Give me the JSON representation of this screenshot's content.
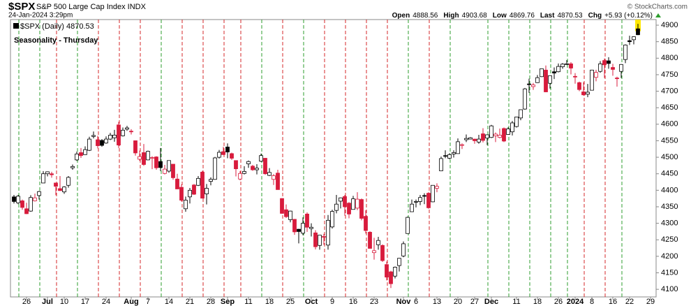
{
  "header": {
    "symbol": "$SPX",
    "name": "S&P 500 Large Cap Index INDX",
    "date": "24-Jan-2024 3:29pm",
    "copyright": "© StockCharts.com",
    "quote": [
      {
        "label": "Open",
        "value": 4888.56
      },
      {
        "label": "High",
        "value": 4903.68
      },
      {
        "label": "Low",
        "value": 4869.76
      },
      {
        "label": "Last",
        "value": 4870.53
      },
      {
        "label": "Chg",
        "value": "+5.93 (+0.12%)"
      }
    ]
  },
  "chart_data": {
    "type": "candlestick",
    "title": "Seasonality - Thursday",
    "legend": "$SPX (Daily) 4870.53",
    "up_color": "#000000",
    "down_color": "#d81b3c",
    "marker_weekday": 4,
    "marker_up_color": "#2e9e2e",
    "marker_down_color": "#d62728",
    "title_color": "#1a1ad4",
    "ylim": [
      4077,
      4917
    ],
    "yticks": [
      4100,
      4150,
      4200,
      4250,
      4300,
      4350,
      4400,
      4450,
      4500,
      4550,
      4600,
      4650,
      4700,
      4750,
      4800,
      4850,
      4900
    ],
    "xticks": [
      {
        "value": "2023-06-26",
        "label": "26"
      },
      {
        "value": "2023-07-03",
        "label": "Jul"
      },
      {
        "value": "2023-07-10",
        "label": "10"
      },
      {
        "value": "2023-07-17",
        "label": "17"
      },
      {
        "value": "2023-07-24",
        "label": "24"
      },
      {
        "value": "2023-08-01",
        "label": "Aug"
      },
      {
        "value": "2023-08-07",
        "label": "7"
      },
      {
        "value": "2023-08-14",
        "label": "14"
      },
      {
        "value": "2023-08-21",
        "label": "21"
      },
      {
        "value": "2023-08-28",
        "label": "28"
      },
      {
        "value": "2023-09-01",
        "label": "Sep"
      },
      {
        "value": "2023-09-11",
        "label": "11"
      },
      {
        "value": "2023-09-18",
        "label": "18"
      },
      {
        "value": "2023-09-25",
        "label": "25"
      },
      {
        "value": "2023-10-02",
        "label": "Oct"
      },
      {
        "value": "2023-10-09",
        "label": "9"
      },
      {
        "value": "2023-10-16",
        "label": "16"
      },
      {
        "value": "2023-10-23",
        "label": "23"
      },
      {
        "value": "2023-11-01",
        "label": "Nov"
      },
      {
        "value": "2023-11-06",
        "label": "6"
      },
      {
        "value": "2023-11-13",
        "label": "13"
      },
      {
        "value": "2023-11-20",
        "label": "20"
      },
      {
        "value": "2023-11-27",
        "label": "27"
      },
      {
        "value": "2023-12-01",
        "label": "Dec"
      },
      {
        "value": "2023-12-11",
        "label": "11"
      },
      {
        "value": "2023-12-18",
        "label": "18"
      },
      {
        "value": "2023-12-26",
        "label": "26"
      },
      {
        "value": "2024-01-02",
        "label": "2024"
      },
      {
        "value": "2024-01-08",
        "label": "8"
      },
      {
        "value": "2024-01-16",
        "label": "16"
      },
      {
        "value": "2024-01-22",
        "label": "22"
      },
      {
        "value": "2024-01-29",
        "label": "29"
      }
    ],
    "x": [
      "2023-06-21",
      "2023-06-22",
      "2023-06-23",
      "2023-06-26",
      "2023-06-27",
      "2023-06-28",
      "2023-06-29",
      "2023-06-30",
      "2023-07-03",
      "2023-07-05",
      "2023-07-06",
      "2023-07-07",
      "2023-07-10",
      "2023-07-11",
      "2023-07-12",
      "2023-07-13",
      "2023-07-14",
      "2023-07-17",
      "2023-07-18",
      "2023-07-19",
      "2023-07-20",
      "2023-07-21",
      "2023-07-24",
      "2023-07-25",
      "2023-07-26",
      "2023-07-27",
      "2023-07-28",
      "2023-07-31",
      "2023-08-01",
      "2023-08-02",
      "2023-08-03",
      "2023-08-04",
      "2023-08-07",
      "2023-08-08",
      "2023-08-09",
      "2023-08-10",
      "2023-08-11",
      "2023-08-14",
      "2023-08-15",
      "2023-08-16",
      "2023-08-17",
      "2023-08-18",
      "2023-08-21",
      "2023-08-22",
      "2023-08-23",
      "2023-08-24",
      "2023-08-25",
      "2023-08-28",
      "2023-08-29",
      "2023-08-30",
      "2023-08-31",
      "2023-09-01",
      "2023-09-05",
      "2023-09-06",
      "2023-09-07",
      "2023-09-08",
      "2023-09-11",
      "2023-09-12",
      "2023-09-13",
      "2023-09-14",
      "2023-09-15",
      "2023-09-18",
      "2023-09-19",
      "2023-09-20",
      "2023-09-21",
      "2023-09-22",
      "2023-09-25",
      "2023-09-26",
      "2023-09-27",
      "2023-09-28",
      "2023-09-29",
      "2023-10-02",
      "2023-10-03",
      "2023-10-04",
      "2023-10-05",
      "2023-10-06",
      "2023-10-09",
      "2023-10-10",
      "2023-10-11",
      "2023-10-12",
      "2023-10-13",
      "2023-10-16",
      "2023-10-17",
      "2023-10-18",
      "2023-10-19",
      "2023-10-20",
      "2023-10-23",
      "2023-10-24",
      "2023-10-25",
      "2023-10-26",
      "2023-10-27",
      "2023-10-30",
      "2023-10-31",
      "2023-11-01",
      "2023-11-02",
      "2023-11-03",
      "2023-11-06",
      "2023-11-07",
      "2023-11-08",
      "2023-11-09",
      "2023-11-10",
      "2023-11-13",
      "2023-11-14",
      "2023-11-15",
      "2023-11-16",
      "2023-11-17",
      "2023-11-20",
      "2023-11-21",
      "2023-11-22",
      "2023-11-24",
      "2023-11-27",
      "2023-11-28",
      "2023-11-29",
      "2023-11-30",
      "2023-12-01",
      "2023-12-04",
      "2023-12-05",
      "2023-12-06",
      "2023-12-07",
      "2023-12-08",
      "2023-12-11",
      "2023-12-12",
      "2023-12-13",
      "2023-12-14",
      "2023-12-15",
      "2023-12-18",
      "2023-12-19",
      "2023-12-20",
      "2023-12-21",
      "2023-12-22",
      "2023-12-26",
      "2023-12-27",
      "2023-12-28",
      "2023-12-29",
      "2024-01-02",
      "2024-01-03",
      "2024-01-04",
      "2024-01-05",
      "2024-01-08",
      "2024-01-09",
      "2024-01-10",
      "2024-01-11",
      "2024-01-12",
      "2024-01-16",
      "2024-01-17",
      "2024-01-18",
      "2024-01-19",
      "2024-01-22",
      "2024-01-23",
      "2024-01-24"
    ],
    "ohlc": [
      [
        4380,
        4386,
        4360,
        4366
      ],
      [
        4362,
        4386,
        4358,
        4382
      ],
      [
        4368,
        4372,
        4341,
        4348
      ],
      [
        4344,
        4362,
        4328,
        4329
      ],
      [
        4337,
        4385,
        4335,
        4378
      ],
      [
        4368,
        4390,
        4366,
        4377
      ],
      [
        4384,
        4398,
        4372,
        4396
      ],
      [
        4422,
        4458,
        4422,
        4450
      ],
      [
        4450,
        4457,
        4442,
        4456
      ],
      [
        4450,
        4456,
        4438,
        4447
      ],
      [
        4422,
        4423,
        4385,
        4412
      ],
      [
        4405,
        4443,
        4398,
        4399
      ],
      [
        4395,
        4412,
        4389,
        4410
      ],
      [
        4415,
        4443,
        4408,
        4439
      ],
      [
        4468,
        4478,
        4462,
        4472
      ],
      [
        4492,
        4517,
        4489,
        4510
      ],
      [
        4514,
        4528,
        4498,
        4505
      ],
      [
        4508,
        4533,
        4507,
        4523
      ],
      [
        4521,
        4562,
        4519,
        4555
      ],
      [
        4563,
        4578,
        4557,
        4566
      ],
      [
        4553,
        4565,
        4527,
        4535
      ],
      [
        4551,
        4555,
        4532,
        4536
      ],
      [
        4543,
        4563,
        4541,
        4555
      ],
      [
        4555,
        4574,
        4552,
        4567
      ],
      [
        4559,
        4583,
        4547,
        4567
      ],
      [
        4598,
        4607,
        4528,
        4537
      ],
      [
        4565,
        4590,
        4563,
        4582
      ],
      [
        4585,
        4595,
        4580,
        4589
      ],
      [
        4579,
        4585,
        4569,
        4577
      ],
      [
        4550,
        4551,
        4505,
        4513
      ],
      [
        4494,
        4520,
        4489,
        4502
      ],
      [
        4514,
        4540,
        4474,
        4478
      ],
      [
        4492,
        4520,
        4491,
        4518
      ],
      [
        4498,
        4503,
        4464,
        4499
      ],
      [
        4501,
        4503,
        4462,
        4468
      ],
      [
        4487,
        4528,
        4458,
        4469
      ],
      [
        4451,
        4477,
        4448,
        4464
      ],
      [
        4458,
        4490,
        4453,
        4490
      ],
      [
        4479,
        4479,
        4432,
        4438
      ],
      [
        4434,
        4450,
        4404,
        4404
      ],
      [
        4409,
        4418,
        4366,
        4370
      ],
      [
        4344,
        4381,
        4335,
        4370
      ],
      [
        4380,
        4407,
        4360,
        4400
      ],
      [
        4416,
        4419,
        4386,
        4388
      ],
      [
        4415,
        4443,
        4413,
        4436
      ],
      [
        4455,
        4459,
        4376,
        4376
      ],
      [
        4389,
        4419,
        4357,
        4406
      ],
      [
        4427,
        4439,
        4415,
        4433
      ],
      [
        4433,
        4501,
        4432,
        4498
      ],
      [
        4500,
        4522,
        4496,
        4515
      ],
      [
        4517,
        4532,
        4507,
        4508
      ],
      [
        4531,
        4542,
        4497,
        4516
      ],
      [
        4511,
        4514,
        4492,
        4497
      ],
      [
        4490,
        4490,
        4442,
        4465
      ],
      [
        4434,
        4458,
        4430,
        4451
      ],
      [
        4451,
        4473,
        4448,
        4457
      ],
      [
        4480,
        4490,
        4468,
        4487
      ],
      [
        4473,
        4477,
        4459,
        4462
      ],
      [
        4462,
        4479,
        4448,
        4467
      ],
      [
        4488,
        4511,
        4486,
        4505
      ],
      [
        4497,
        4498,
        4447,
        4450
      ],
      [
        4445,
        4467,
        4443,
        4454
      ],
      [
        4433,
        4449,
        4416,
        4444
      ],
      [
        4452,
        4462,
        4402,
        4402
      ],
      [
        4375,
        4376,
        4329,
        4330
      ],
      [
        4341,
        4357,
        4316,
        4320
      ],
      [
        4311,
        4338,
        4303,
        4337
      ],
      [
        4312,
        4313,
        4265,
        4274
      ],
      [
        4282,
        4283,
        4239,
        4275
      ],
      [
        4270,
        4318,
        4264,
        4300
      ],
      [
        4328,
        4333,
        4274,
        4288
      ],
      [
        4284,
        4300,
        4260,
        4288
      ],
      [
        4271,
        4279,
        4221,
        4229
      ],
      [
        4233,
        4264,
        4220,
        4264
      ],
      [
        4260,
        4268,
        4235,
        4258
      ],
      [
        4234,
        4325,
        4220,
        4309
      ],
      [
        4289,
        4341,
        4284,
        4336
      ],
      [
        4339,
        4386,
        4330,
        4358
      ],
      [
        4367,
        4378,
        4345,
        4377
      ],
      [
        4381,
        4386,
        4323,
        4350
      ],
      [
        4361,
        4364,
        4315,
        4328
      ],
      [
        4342,
        4383,
        4342,
        4374
      ],
      [
        4346,
        4394,
        4340,
        4373
      ],
      [
        4372,
        4375,
        4309,
        4315
      ],
      [
        4321,
        4339,
        4269,
        4278
      ],
      [
        4273,
        4276,
        4223,
        4224
      ],
      [
        4211,
        4256,
        4190,
        4217
      ],
      [
        4235,
        4259,
        4220,
        4248
      ],
      [
        4233,
        4236,
        4183,
        4187
      ],
      [
        4175,
        4184,
        4127,
        4137
      ],
      [
        4153,
        4156,
        4104,
        4117
      ],
      [
        4140,
        4169,
        4133,
        4167
      ],
      [
        4172,
        4195,
        4154,
        4194
      ],
      [
        4201,
        4245,
        4197,
        4238
      ],
      [
        4269,
        4320,
        4269,
        4318
      ],
      [
        4335,
        4372,
        4335,
        4358
      ],
      [
        4364,
        4372,
        4348,
        4366
      ],
      [
        4366,
        4386,
        4355,
        4378
      ],
      [
        4384,
        4391,
        4358,
        4383
      ],
      [
        4391,
        4394,
        4344,
        4347
      ],
      [
        4365,
        4415,
        4364,
        4415
      ],
      [
        4406,
        4421,
        4394,
        4412
      ],
      [
        4459,
        4502,
        4459,
        4496
      ],
      [
        4505,
        4521,
        4497,
        4503
      ],
      [
        4497,
        4512,
        4494,
        4508
      ],
      [
        4510,
        4521,
        4499,
        4514
      ],
      [
        4511,
        4557,
        4511,
        4547
      ],
      [
        4538,
        4542,
        4525,
        4538
      ],
      [
        4553,
        4569,
        4546,
        4557
      ],
      [
        4555,
        4561,
        4555,
        4559
      ],
      [
        4555,
        4556,
        4541,
        4550
      ],
      [
        4546,
        4568,
        4541,
        4555
      ],
      [
        4571,
        4588,
        4545,
        4551
      ],
      [
        4558,
        4569,
        4537,
        4568
      ],
      [
        4560,
        4598,
        4558,
        4595
      ],
      [
        4565,
        4575,
        4546,
        4570
      ],
      [
        4560,
        4587,
        4557,
        4567
      ],
      [
        4587,
        4590,
        4546,
        4549
      ],
      [
        4569,
        4591,
        4568,
        4586
      ],
      [
        4577,
        4610,
        4566,
        4604
      ],
      [
        4593,
        4623,
        4590,
        4622
      ],
      [
        4619,
        4644,
        4612,
        4644
      ],
      [
        4646,
        4710,
        4644,
        4707
      ],
      [
        4722,
        4738,
        4695,
        4720
      ],
      [
        4714,
        4725,
        4704,
        4719
      ],
      [
        4726,
        4749,
        4725,
        4741
      ],
      [
        4744,
        4768,
        4743,
        4768
      ],
      [
        4764,
        4778,
        4697,
        4698
      ],
      [
        4724,
        4748,
        4708,
        4747
      ],
      [
        4759,
        4772,
        4737,
        4755
      ],
      [
        4759,
        4784,
        4757,
        4775
      ],
      [
        4774,
        4785,
        4768,
        4782
      ],
      [
        4782,
        4794,
        4780,
        4783
      ],
      [
        4783,
        4788,
        4751,
        4770
      ],
      [
        4745,
        4755,
        4723,
        4743
      ],
      [
        4726,
        4729,
        4700,
        4705
      ],
      [
        4698,
        4727,
        4687,
        4689
      ],
      [
        4691,
        4722,
        4682,
        4697
      ],
      [
        4703,
        4765,
        4703,
        4764
      ],
      [
        4742,
        4765,
        4730,
        4757
      ],
      [
        4760,
        4791,
        4756,
        4783
      ],
      [
        4793,
        4799,
        4740,
        4780
      ],
      [
        4792,
        4803,
        4768,
        4784
      ],
      [
        4772,
        4783,
        4747,
        4766
      ],
      [
        4740,
        4744,
        4714,
        4739
      ],
      [
        4760,
        4782,
        4740,
        4781
      ],
      [
        4796,
        4842,
        4785,
        4840
      ],
      [
        4853,
        4868,
        4840,
        4850
      ],
      [
        4856,
        4866,
        4842,
        4865
      ],
      [
        4889,
        4904,
        4870,
        4871
      ]
    ]
  }
}
